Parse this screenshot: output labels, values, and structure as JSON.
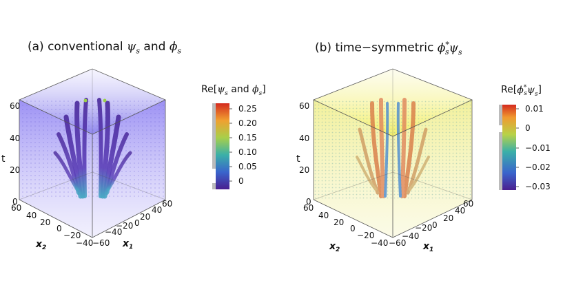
{
  "panels": [
    {
      "label": "(a) conventional",
      "psi": "ψ",
      "and": "and",
      "phi": "ϕ",
      "sub": "s",
      "colorbar": {
        "title_prefix": "Re[",
        "title_mid": " and ",
        "title_suffix": "]",
        "ticks": [
          "0.25",
          "0.20",
          "0.15",
          "0.10",
          "0.05",
          "0"
        ]
      }
    },
    {
      "label": "(b) time−symmetric",
      "phi": "ϕ",
      "star": "*",
      "psi": "ψ",
      "sub": "s",
      "colorbar": {
        "title_prefix": "Re[",
        "title_suffix": "]",
        "ticks": [
          "0.01",
          "0",
          "−0.01",
          "−0.02",
          "−0.03"
        ]
      }
    }
  ],
  "axes": {
    "t_label": "t",
    "t_ticks": [
      "60",
      "40",
      "20",
      "0"
    ],
    "x2_label": "x",
    "x2_sub": "2",
    "x2_ticks": [
      "60",
      "40",
      "20",
      "0",
      "−20",
      "−40"
    ],
    "x1_label": "x",
    "x1_sub": "1",
    "x1_ticks": [
      "−60",
      "−40",
      "−20",
      "0",
      "20",
      "40",
      "60"
    ]
  },
  "colors": {
    "purple": "#5a2aa8",
    "blue": "#3d6fd0",
    "teal": "#3aa7a0",
    "yellow": "#f4f07a",
    "red": "#d23a2a"
  }
}
